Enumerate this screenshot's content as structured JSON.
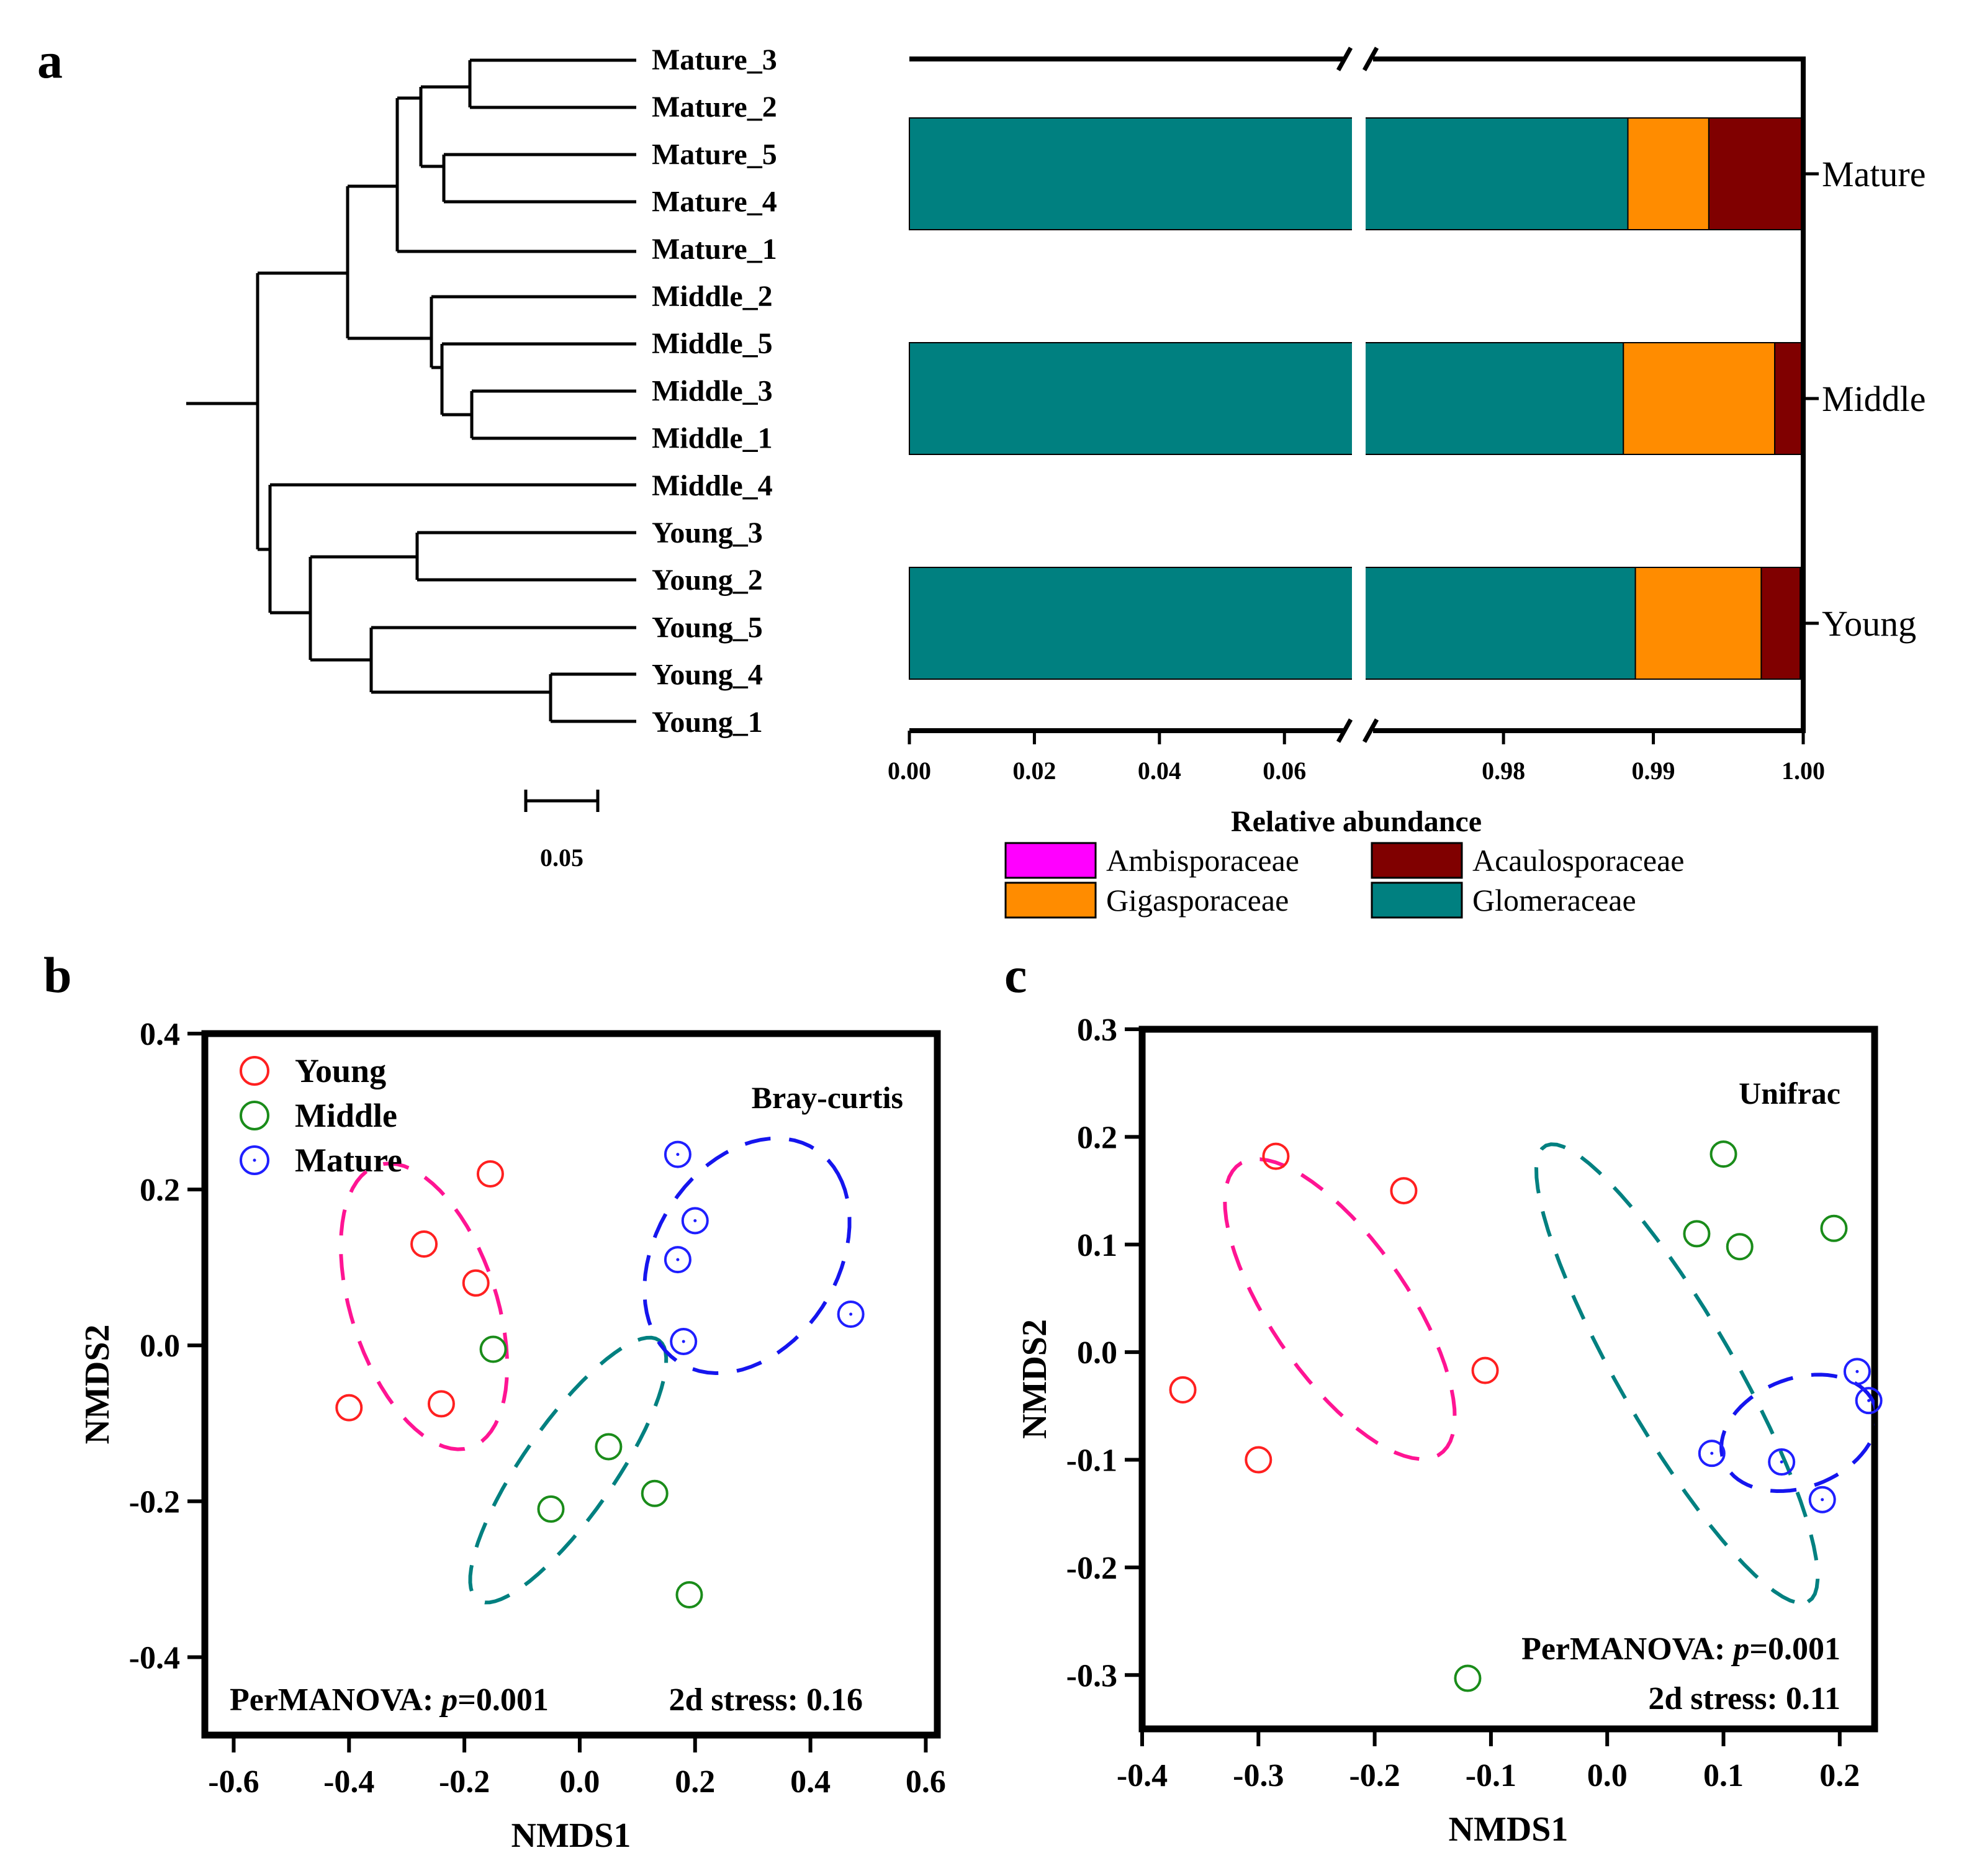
{
  "panels": {
    "a": "a",
    "b": "b",
    "c": "c"
  },
  "colors": {
    "Ambisporaceae": "#ff00ff",
    "Acaulosporaceae": "#800000",
    "Gigasporaceae": "#ff8c00",
    "Glomeraceae": "#008080",
    "Young": "#ff2020",
    "Middle": "#1a8c1a",
    "Mature": "#1f1fff",
    "young_ellipse": "#ff1493",
    "middle_ellipse": "#008080",
    "mature_ellipse": "#1515ee"
  },
  "dendrogram": {
    "leaves": [
      "Mature_3",
      "Mature_2",
      "Mature_5",
      "Mature_4",
      "Mature_1",
      "Middle_2",
      "Middle_5",
      "Middle_3",
      "Middle_1",
      "Middle_4",
      "Young_3",
      "Young_2",
      "Young_5",
      "Young_4",
      "Young_1"
    ],
    "scale_bar_label": "0.05"
  },
  "chart_data": [
    {
      "type": "bar",
      "orientation": "horizontal",
      "stacked": true,
      "axis_break": [
        0.07,
        0.97
      ],
      "categories": [
        "Mature",
        "Middle",
        "Young"
      ],
      "series": [
        {
          "name": "Glomeraceae",
          "values": [
            0.9883,
            0.988,
            0.9888
          ]
        },
        {
          "name": "Gigasporaceae",
          "values": [
            0.0054,
            0.0101,
            0.0084
          ]
        },
        {
          "name": "Acaulosporaceae",
          "values": [
            0.0063,
            0.0018,
            0.0026
          ]
        },
        {
          "name": "Ambisporaceae",
          "values": [
            0.0,
            0.0001,
            0.0002
          ]
        }
      ],
      "xticks": [
        "0.00",
        "0.02",
        "0.04",
        "0.06",
        "0.98",
        "0.99",
        "1.00"
      ],
      "xlabel": "Relative abundance",
      "legend": [
        "Ambisporaceae",
        "Acaulosporaceae",
        "Gigasporaceae",
        "Glomeraceae"
      ],
      "legend_position": "bottom"
    },
    {
      "type": "scatter",
      "title": "Bray-curtis",
      "xlabel": "NMDS1",
      "ylabel": "NMDS2",
      "xlim": [
        -0.65,
        0.62
      ],
      "ylim": [
        -0.5,
        0.4
      ],
      "xticks": [
        "-0.6",
        "-0.4",
        "-0.2",
        "0.0",
        "0.2",
        "0.4",
        "0.6"
      ],
      "yticks": [
        "0.4",
        "0.2",
        "0.0",
        "-0.2",
        "-0.4"
      ],
      "series": [
        {
          "name": "Young",
          "x": [
            -0.4,
            -0.27,
            -0.18,
            -0.24,
            -0.155
          ],
          "y": [
            -0.08,
            0.13,
            0.08,
            -0.075,
            0.22
          ]
        },
        {
          "name": "Middle",
          "x": [
            -0.15,
            0.05,
            0.13,
            -0.05,
            0.19
          ],
          "y": [
            -0.005,
            -0.13,
            -0.19,
            -0.21,
            -0.32
          ]
        },
        {
          "name": "Mature",
          "x": [
            0.17,
            0.2,
            0.17,
            0.18,
            0.47
          ],
          "y": [
            0.245,
            0.16,
            0.11,
            0.005,
            0.04
          ]
        }
      ],
      "ellipses": [
        {
          "group": "Young",
          "cx": -0.27,
          "cy": 0.05,
          "rx": 0.2,
          "ry": 0.12,
          "angle": -60
        },
        {
          "group": "Middle",
          "cx": -0.02,
          "cy": -0.16,
          "rx": 0.23,
          "ry": 0.07,
          "angle": 45
        },
        {
          "group": "Mature",
          "cx": 0.29,
          "cy": 0.115,
          "rx": 0.19,
          "ry": 0.135,
          "angle": 30
        }
      ],
      "annotations": [
        "PerMANOVA: ",
        "p",
        "=0.001",
        "2d stress: 0.16"
      ],
      "legend": [
        "Young",
        "Middle",
        "Mature"
      ],
      "legend_position": "top-left"
    },
    {
      "type": "scatter",
      "title": "Unifrac",
      "xlabel": "NMDS1",
      "ylabel": "NMDS2",
      "xlim": [
        -0.4,
        0.23
      ],
      "ylim": [
        -0.35,
        0.3
      ],
      "xticks": [
        "-0.4",
        "-0.3",
        "-0.2",
        "-0.1",
        "0.0",
        "0.1",
        "0.2"
      ],
      "yticks": [
        "0.3",
        "0.2",
        "0.1",
        "0.0",
        "-0.1",
        "-0.2",
        "-0.3"
      ],
      "series": [
        {
          "name": "Young",
          "x": [
            -0.285,
            -0.175,
            -0.365,
            -0.3,
            -0.105
          ],
          "y": [
            0.182,
            0.15,
            -0.035,
            -0.1,
            -0.017
          ]
        },
        {
          "name": "Middle",
          "x": [
            0.1,
            0.077,
            0.114,
            0.195,
            -0.12
          ],
          "y": [
            0.184,
            0.11,
            0.098,
            0.115,
            -0.303
          ]
        },
        {
          "name": "Mature",
          "x": [
            0.215,
            0.225,
            0.09,
            0.15,
            0.185
          ],
          "y": [
            -0.018,
            -0.045,
            -0.094,
            -0.102,
            -0.137
          ]
        }
      ],
      "ellipses": [
        {
          "group": "Young",
          "cx": -0.23,
          "cy": 0.04,
          "rx": 0.16,
          "ry": 0.06,
          "angle": -58
        },
        {
          "group": "Middle",
          "cx": 0.06,
          "cy": -0.02,
          "rx": 0.24,
          "ry": 0.05,
          "angle": -62
        },
        {
          "group": "Mature",
          "cx": 0.165,
          "cy": -0.075,
          "rx": 0.07,
          "ry": 0.05,
          "angle": 25
        }
      ],
      "annotations": [
        "PerMANOVA: ",
        "p",
        "=0.001",
        "2d stress: 0.11"
      ]
    }
  ]
}
